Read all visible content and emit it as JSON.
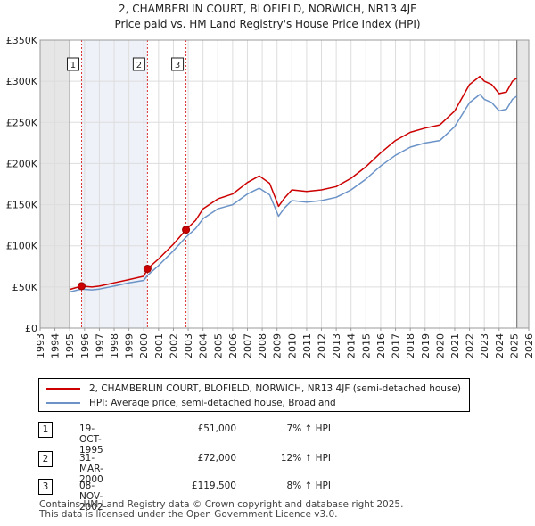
{
  "chart_data": {
    "type": "line",
    "title": "2, CHAMBERLIN COURT, BLOFIELD, NORWICH, NR13 4JF",
    "subtitle": "Price paid vs. HM Land Registry's House Price Index (HPI)",
    "xlim": [
      1993,
      2026
    ],
    "ylim": [
      0,
      350000
    ],
    "x_ticks": [
      1993,
      1994,
      1995,
      1996,
      1997,
      1998,
      1999,
      2000,
      2001,
      2002,
      2003,
      2004,
      2005,
      2006,
      2007,
      2008,
      2009,
      2010,
      2011,
      2012,
      2013,
      2014,
      2015,
      2016,
      2017,
      2018,
      2019,
      2020,
      2021,
      2022,
      2023,
      2024,
      2025,
      2026
    ],
    "y_ticks": [
      0,
      50000,
      100000,
      150000,
      200000,
      250000,
      300000,
      350000
    ],
    "y_tick_labels": [
      "£0",
      "£50K",
      "£100K",
      "£150K",
      "£200K",
      "£250K",
      "£300K",
      "£350K"
    ],
    "data_start": 1995.0,
    "data_end": 2025.2,
    "series": [
      {
        "name": "2, CHAMBERLIN COURT, BLOFIELD, NORWICH, NR13 4JF (semi-detached house)",
        "color": "#cc0000",
        "x": [
          1995.0,
          1995.8,
          1996.5,
          1997.0,
          1998.0,
          1999.0,
          2000.0,
          2000.25,
          2001.0,
          2002.0,
          2002.85,
          2003.5,
          2004.0,
          2005.0,
          2006.0,
          2007.0,
          2007.8,
          2008.5,
          2009.1,
          2009.5,
          2010.0,
          2011.0,
          2012.0,
          2013.0,
          2014.0,
          2015.0,
          2016.0,
          2017.0,
          2018.0,
          2019.0,
          2020.0,
          2021.0,
          2022.0,
          2022.7,
          2023.0,
          2023.5,
          2024.0,
          2024.5,
          2024.9,
          2025.2
        ],
        "values": [
          47000,
          51000,
          50000,
          51000,
          55000,
          59000,
          63000,
          72000,
          84000,
          102000,
          119500,
          131000,
          145000,
          157000,
          163000,
          177000,
          185000,
          176000,
          148000,
          158000,
          168000,
          166000,
          168000,
          172000,
          182000,
          196000,
          213000,
          228000,
          238000,
          243000,
          247000,
          264000,
          296000,
          306000,
          300000,
          296000,
          285000,
          287000,
          300000,
          304000
        ]
      },
      {
        "name": "HPI: Average price, semi-detached house, Broadland",
        "color": "#6b93c7",
        "x": [
          1995.0,
          1995.8,
          1996.5,
          1997.0,
          1998.0,
          1999.0,
          2000.0,
          2000.25,
          2001.0,
          2002.0,
          2002.85,
          2003.5,
          2004.0,
          2005.0,
          2006.0,
          2007.0,
          2007.8,
          2008.5,
          2009.1,
          2009.5,
          2010.0,
          2011.0,
          2012.0,
          2013.0,
          2014.0,
          2015.0,
          2016.0,
          2017.0,
          2018.0,
          2019.0,
          2020.0,
          2021.0,
          2022.0,
          2022.7,
          2023.0,
          2023.5,
          2024.0,
          2024.5,
          2024.9,
          2025.2
        ],
        "values": [
          44000,
          47500,
          46500,
          47500,
          51000,
          55000,
          58000,
          64000,
          76000,
          94000,
          110500,
          121000,
          133000,
          145000,
          150000,
          163000,
          170000,
          162000,
          136000,
          146000,
          155000,
          153000,
          155000,
          159000,
          168000,
          181000,
          197000,
          210000,
          220000,
          225000,
          228000,
          245000,
          274000,
          284000,
          278000,
          274000,
          264000,
          266000,
          278000,
          282000
        ]
      }
    ],
    "sales": [
      {
        "label": "1",
        "x": 1995.8,
        "price": 51000
      },
      {
        "label": "2",
        "x": 2000.25,
        "price": 72000
      },
      {
        "label": "3",
        "x": 2002.85,
        "price": 119500
      }
    ]
  },
  "legend": {
    "property_label": "2, CHAMBERLIN COURT, BLOFIELD, NORWICH, NR13 4JF (semi-detached house)",
    "hpi_label": "HPI: Average price, semi-detached house, Broadland",
    "property_color": "#cc0000",
    "hpi_color": "#6b93c7"
  },
  "transactions": [
    {
      "num": "1",
      "date": "19-OCT-1995",
      "price": "£51,000",
      "hpi": "7% ↑ HPI"
    },
    {
      "num": "2",
      "date": "31-MAR-2000",
      "price": "£72,000",
      "hpi": "12% ↑ HPI"
    },
    {
      "num": "3",
      "date": "08-NOV-2002",
      "price": "£119,500",
      "hpi": "8% ↑ HPI"
    }
  ],
  "footer": {
    "line1": "Contains HM Land Registry data © Crown copyright and database right 2025.",
    "line2": "This data is licensed under the Open Government Licence v3.0."
  }
}
